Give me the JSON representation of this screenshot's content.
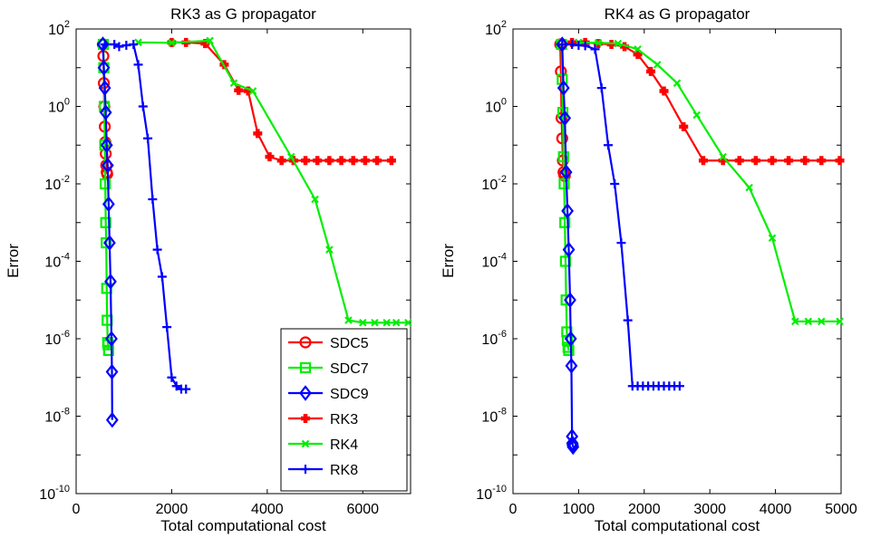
{
  "chart_data": [
    {
      "type": "line",
      "title": "RK3 as G propagator",
      "xlabel": "Total computational cost",
      "ylabel": "Error",
      "xlim": [
        0,
        7000
      ],
      "ylim_log10": [
        -10,
        2
      ],
      "yscale": "log",
      "xticks": [
        "0",
        "2000",
        "4000",
        "6000"
      ],
      "ytick_exponents": [
        "-10",
        "-8",
        "-6",
        "-4",
        "-2",
        "0",
        "2"
      ],
      "ytick_base": "10",
      "grid": false,
      "legend": {
        "placement": "bottom-right",
        "entries": [
          "SDC5",
          "SDC7",
          "SDC9",
          "RK3",
          "RK4",
          "RK8"
        ]
      },
      "series": [
        {
          "name": "SDC5",
          "color": "#ff0000",
          "marker": "circle",
          "x": [
            560,
            570,
            580,
            590,
            600,
            610,
            620,
            630,
            640,
            650
          ],
          "y": [
            40,
            20,
            4,
            1,
            0.3,
            0.12,
            0.06,
            0.03,
            0.02,
            0.018
          ]
        },
        {
          "name": "SDC7",
          "color": "#00ee00",
          "marker": "square",
          "x": [
            570,
            580,
            590,
            600,
            610,
            620,
            630,
            640,
            650,
            660,
            670,
            680
          ],
          "y": [
            40,
            10,
            1,
            0.1,
            0.01,
            0.001,
            0.0003,
            2e-05,
            3e-06,
            8e-07,
            7e-07,
            5e-07
          ]
        },
        {
          "name": "SDC9",
          "color": "#0000ff",
          "marker": "diamond",
          "x": [
            560,
            580,
            600,
            620,
            640,
            660,
            680,
            700,
            720,
            740,
            750,
            755
          ],
          "y": [
            40,
            10,
            3,
            0.7,
            0.1,
            0.03,
            0.003,
            0.0003,
            3e-05,
            1e-06,
            1.4e-07,
            8e-09
          ]
        },
        {
          "name": "RK3",
          "color": "#ff0000",
          "marker": "plus-filled",
          "x": [
            2000,
            2300,
            2700,
            3100,
            3400,
            3600,
            3800,
            4050,
            4300,
            4550,
            4800,
            5050,
            5300,
            5550,
            5800,
            6050,
            6300,
            6600
          ],
          "y": [
            45,
            45,
            42,
            12,
            2.6,
            2.5,
            0.2,
            0.05,
            0.04,
            0.04,
            0.04,
            0.04,
            0.04,
            0.04,
            0.04,
            0.04,
            0.04,
            0.04
          ]
        },
        {
          "name": "RK4",
          "color": "#00ee00",
          "marker": "x",
          "x": [
            1300,
            2000,
            2800,
            3300,
            3700,
            4500,
            5000,
            5300,
            5700,
            6000,
            6250,
            6500,
            6700,
            6950
          ],
          "y": [
            45,
            44,
            50,
            4,
            2.5,
            0.05,
            0.004,
            0.0002,
            3e-06,
            2.6e-06,
            2.6e-06,
            2.6e-06,
            2.6e-06,
            2.6e-06
          ]
        },
        {
          "name": "RK8",
          "color": "#0000ff",
          "marker": "plus",
          "x": [
            600,
            800,
            900,
            1050,
            1200,
            1300,
            1400,
            1500,
            1600,
            1700,
            1800,
            1900,
            2000,
            2100,
            2200,
            2300
          ],
          "y": [
            40,
            40,
            35,
            38,
            40,
            12,
            1,
            0.15,
            0.004,
            0.0002,
            4e-05,
            2e-06,
            1e-07,
            6e-08,
            5e-08,
            5e-08
          ]
        }
      ]
    },
    {
      "type": "line",
      "title": "RK4 as G propagator",
      "xlabel": "Total computational cost",
      "ylabel": "Error",
      "xlim": [
        0,
        5000
      ],
      "ylim_log10": [
        -10,
        2
      ],
      "yscale": "log",
      "xticks": [
        "0",
        "1000",
        "2000",
        "3000",
        "4000",
        "5000"
      ],
      "ytick_exponents": [
        "-10",
        "-8",
        "-6",
        "-4",
        "-2",
        "0",
        "2"
      ],
      "ytick_base": "10",
      "grid": false,
      "series": [
        {
          "name": "SDC5",
          "color": "#ff0000",
          "marker": "circle",
          "x": [
            720,
            730,
            740,
            750,
            760,
            770,
            780,
            790
          ],
          "y": [
            40,
            8,
            0.5,
            0.15,
            0.04,
            0.02,
            0.017,
            0.016
          ]
        },
        {
          "name": "SDC7",
          "color": "#00ee00",
          "marker": "square",
          "x": [
            740,
            750,
            760,
            770,
            780,
            790,
            800,
            810,
            820,
            830,
            840,
            850
          ],
          "y": [
            40,
            5,
            0.7,
            0.05,
            0.01,
            0.001,
            0.0001,
            1e-05,
            1.5e-06,
            9e-07,
            6e-07,
            5e-07
          ]
        },
        {
          "name": "SDC9",
          "color": "#0000ff",
          "marker": "diamond",
          "x": [
            750,
            770,
            790,
            810,
            830,
            850,
            870,
            880,
            890,
            900,
            905,
            910,
            915
          ],
          "y": [
            40,
            3,
            0.5,
            0.02,
            0.002,
            0.0002,
            1e-05,
            1e-06,
            2e-07,
            3e-09,
            2e-09,
            1.8e-09,
            1.6e-09
          ]
        },
        {
          "name": "RK3",
          "color": "#ff0000",
          "marker": "plus-filled",
          "x": [
            900,
            1100,
            1300,
            1500,
            1700,
            1900,
            2100,
            2300,
            2600,
            2900,
            3200,
            3450,
            3700,
            3950,
            4200,
            4450,
            4700,
            4980
          ],
          "y": [
            45,
            45,
            42,
            40,
            35,
            22,
            8,
            2.5,
            0.3,
            0.04,
            0.04,
            0.04,
            0.04,
            0.04,
            0.04,
            0.04,
            0.04,
            0.04
          ]
        },
        {
          "name": "RK4",
          "color": "#00ee00",
          "marker": "x",
          "x": [
            1000,
            1300,
            1600,
            1900,
            2200,
            2500,
            2800,
            3200,
            3600,
            3950,
            4300,
            4500,
            4700,
            4980
          ],
          "y": [
            45,
            44,
            42,
            30,
            12,
            4,
            0.6,
            0.05,
            0.008,
            0.0004,
            2.8e-06,
            2.8e-06,
            2.8e-06,
            2.8e-06
          ]
        },
        {
          "name": "RK8",
          "color": "#0000ff",
          "marker": "plus",
          "x": [
            750,
            900,
            1000,
            1100,
            1250,
            1350,
            1450,
            1550,
            1650,
            1750,
            1820,
            1900,
            1980,
            2060,
            2140,
            2220,
            2300,
            2380,
            2460,
            2540
          ],
          "y": [
            40,
            40,
            38,
            37,
            30,
            3,
            0.1,
            0.01,
            0.0003,
            3e-06,
            6e-08,
            6e-08,
            6e-08,
            6e-08,
            6e-08,
            6e-08,
            6e-08,
            6e-08,
            6e-08,
            6e-08
          ]
        }
      ]
    }
  ]
}
